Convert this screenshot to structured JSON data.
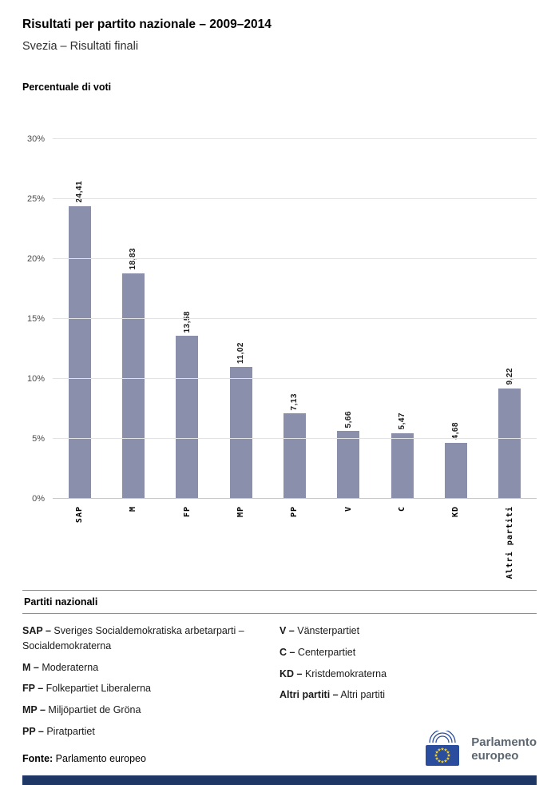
{
  "header": {
    "title": "Risultati per partito nazionale – 2009–2014",
    "subtitle": "Svezia – Risultati finali"
  },
  "chart_data": {
    "type": "bar",
    "title": "Percentuale di voti",
    "categories": [
      "SAP",
      "M",
      "FP",
      "MP",
      "PP",
      "V",
      "C",
      "KD",
      "Altri partiti"
    ],
    "values": [
      24.41,
      18.83,
      13.58,
      11.02,
      7.13,
      5.66,
      5.47,
      4.68,
      9.22
    ],
    "value_labels": [
      "24,41",
      "18,83",
      "13,58",
      "11,02",
      "7,13",
      "5,66",
      "5,47",
      "4,68",
      "9,22"
    ],
    "ylabel": "Percentuale di voti",
    "xlabel": "",
    "ylim": [
      0,
      30
    ],
    "yticks": [
      0,
      5,
      10,
      15,
      20,
      25,
      30
    ],
    "ytick_labels": [
      "0%",
      "5%",
      "10%",
      "15%",
      "20%",
      "25%",
      "30%"
    ],
    "grid": true,
    "legend_position": "none",
    "bar_color": "#8a90ac"
  },
  "legend": {
    "title": "Partiti nazionali",
    "columns": [
      {
        "items": [
          {
            "abbr": "SAP –",
            "name": "Sveriges Socialdemokratiska arbetarparti – Socialdemokraterna"
          },
          {
            "abbr": "M –",
            "name": "Moderaterna"
          },
          {
            "abbr": "FP –",
            "name": "Folkepartiet Liberalerna"
          },
          {
            "abbr": "MP –",
            "name": "Miljöpartiet de Gröna"
          },
          {
            "abbr": "PP –",
            "name": "Piratpartiet"
          }
        ]
      },
      {
        "items": [
          {
            "abbr": "V –",
            "name": "Vänsterpartiet"
          },
          {
            "abbr": "C –",
            "name": "Centerpartiet"
          },
          {
            "abbr": "KD –",
            "name": "Kristdemokraterna"
          },
          {
            "abbr": "Altri partiti –",
            "name": "Altri partiti"
          }
        ]
      }
    ]
  },
  "footer": {
    "source_label": "Fonte:",
    "source_value": "Parlamento europeo",
    "logo_text_line1": "Parlamento",
    "logo_text_line2": "europeo",
    "logo_flag_color": "#2b4d9e",
    "logo_star_color": "#ffd617",
    "bottom_bar_color": "#1e3765"
  }
}
